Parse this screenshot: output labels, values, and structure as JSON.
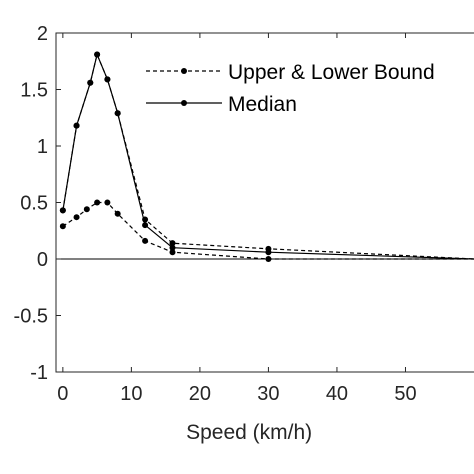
{
  "chart_data": {
    "type": "line",
    "xlabel": "Speed (km/h)",
    "ylabel": "",
    "xlim": [
      -1,
      60
    ],
    "ylim": [
      -1,
      2
    ],
    "xticks": [
      0,
      10,
      20,
      30,
      40,
      50
    ],
    "yticks": [
      -1,
      -0.5,
      0,
      0.5,
      1,
      1.5,
      2
    ],
    "xtick_labels": [
      "0",
      "10",
      "20",
      "30",
      "40",
      "50"
    ],
    "ytick_labels": [
      "-1",
      "-0.5",
      "0",
      "0.5",
      "1",
      "1.5",
      "2"
    ],
    "grid": false,
    "legend_position": "top-right",
    "zero_line": true,
    "legend": [
      {
        "label": "Upper & Lower Bound",
        "style": "dashed"
      },
      {
        "label": "Median",
        "style": "solid"
      }
    ],
    "series": [
      {
        "name": "Upper & Lower Bound",
        "style": "dashed",
        "x": [
          0,
          2,
          4,
          5,
          6.5,
          8,
          12,
          16,
          30,
          60
        ],
        "y": [
          0.43,
          1.18,
          1.56,
          1.81,
          1.59,
          1.29,
          0.35,
          0.14,
          0.09,
          0.0
        ]
      },
      {
        "name": "Upper & Lower Bound",
        "style": "dashed",
        "x": [
          0,
          2,
          3.5,
          5,
          6.5,
          8,
          12,
          16,
          30,
          60
        ],
        "y": [
          0.29,
          0.37,
          0.44,
          0.5,
          0.5,
          0.4,
          0.16,
          0.06,
          0.0,
          0.0
        ]
      },
      {
        "name": "Median",
        "style": "solid",
        "x": [
          0,
          2,
          4,
          5,
          6.5,
          8,
          12,
          16,
          30,
          60
        ],
        "y": [
          0.43,
          1.18,
          1.56,
          1.81,
          1.59,
          1.29,
          0.3,
          0.1,
          0.06,
          0.0
        ]
      }
    ]
  },
  "colors": {
    "line": "#000000",
    "axis": "#262626",
    "background": "#ffffff"
  }
}
